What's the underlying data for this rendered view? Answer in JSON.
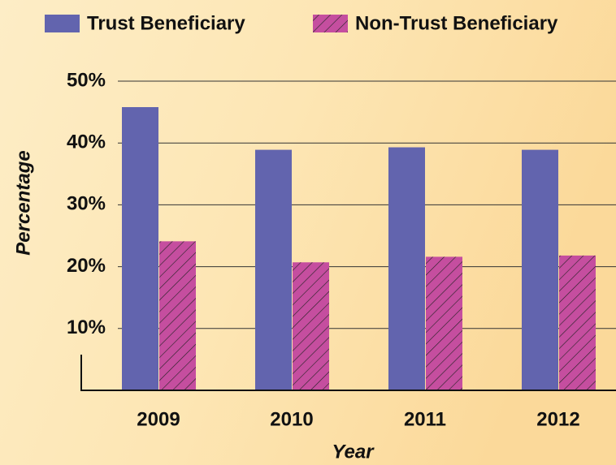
{
  "chart_data": {
    "type": "bar",
    "x_label": "Year",
    "y_label": "Percentage",
    "categories": [
      "2009",
      "2010",
      "2011",
      "2012"
    ],
    "series": [
      {
        "name": "Trust Beneficiary",
        "color": "#6264ae",
        "values": [
          45.8,
          38.9,
          39.3,
          38.9
        ]
      },
      {
        "name": "Non-Trust Beneficiary",
        "color": "#c54e9f",
        "hatch": true,
        "values": [
          24.1,
          20.7,
          21.6,
          21.8
        ]
      }
    ],
    "ylim": [
      0,
      50
    ],
    "yticks": [
      {
        "value": 10,
        "label": "10%"
      },
      {
        "value": 20,
        "label": "20%"
      },
      {
        "value": 30,
        "label": "30%"
      },
      {
        "value": 40,
        "label": "40%"
      },
      {
        "value": 50,
        "label": "50%"
      }
    ],
    "grid": true,
    "legend": "top"
  }
}
